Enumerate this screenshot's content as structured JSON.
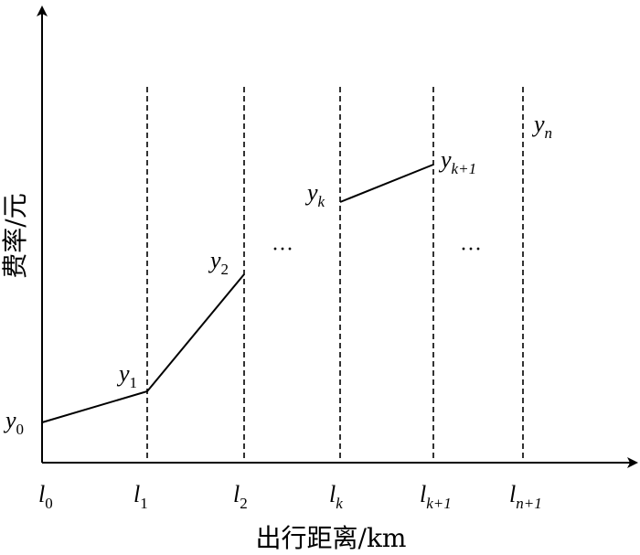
{
  "x_axis_title": "出行距离/km",
  "y_axis_title": "费率/元",
  "ellipsis": "···",
  "x_ticks": [
    {
      "base": "l",
      "sub": "0"
    },
    {
      "base": "l",
      "sub": "1"
    },
    {
      "base": "l",
      "sub": "2"
    },
    {
      "base": "l",
      "sub": "k"
    },
    {
      "base": "l",
      "sub": "k+1"
    },
    {
      "base": "l",
      "sub": "n+1"
    }
  ],
  "y_points": [
    {
      "base": "y",
      "sub": "0"
    },
    {
      "base": "y",
      "sub": "1"
    },
    {
      "base": "y",
      "sub": "2"
    },
    {
      "base": "y",
      "sub": "k"
    },
    {
      "base": "y",
      "sub": "k+1"
    },
    {
      "base": "y",
      "sub": "n"
    }
  ]
}
